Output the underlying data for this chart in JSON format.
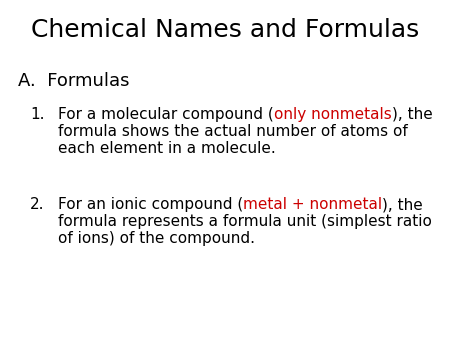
{
  "title": "Chemical Names and Formulas",
  "background_color": "#ffffff",
  "title_fontsize": 18,
  "title_color": "#000000",
  "section_label": "A.  Formulas",
  "section_fontsize": 13,
  "item1_segments_line1": [
    {
      "text": "For a molecular compound (",
      "color": "#000000"
    },
    {
      "text": "only nonmetals",
      "color": "#cc0000"
    },
    {
      "text": "), the",
      "color": "#000000"
    }
  ],
  "item1_line2": "formula shows the actual number of atoms of",
  "item1_line3": "each element in a molecule.",
  "item2_segments_line1": [
    {
      "text": "For an ionic compound (",
      "color": "#000000"
    },
    {
      "text": "metal + nonmetal",
      "color": "#cc0000"
    },
    {
      "text": "), the",
      "color": "#000000"
    }
  ],
  "item2_line2": "formula represents a formula unit (simplest ratio",
  "item2_line3": "of ions) of the compound.",
  "body_fontsize": 11,
  "font_family": "DejaVu Sans"
}
